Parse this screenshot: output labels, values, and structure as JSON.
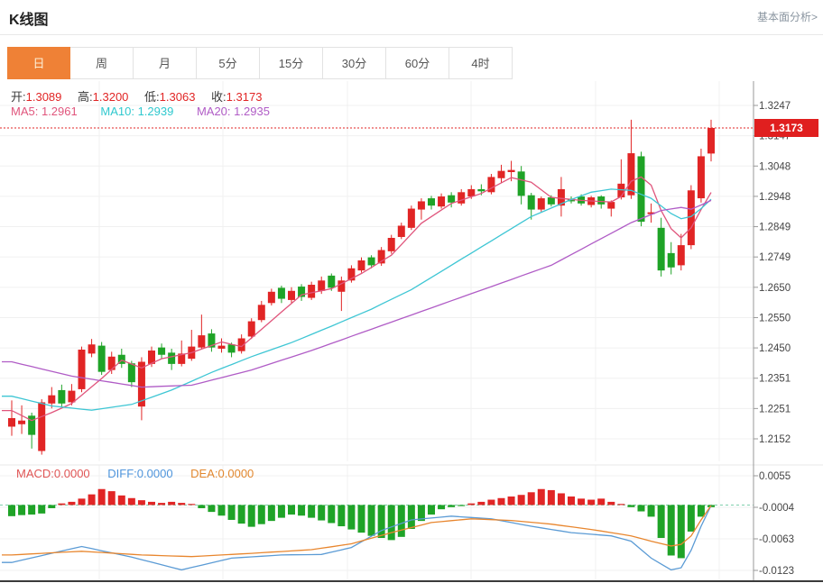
{
  "header": {
    "title": "K线图",
    "analysis_link": "基本面分析>"
  },
  "tabs": [
    {
      "id": "day",
      "label": "日",
      "active": true
    },
    {
      "id": "week",
      "label": "周",
      "active": false
    },
    {
      "id": "month",
      "label": "月",
      "active": false
    },
    {
      "id": "5min",
      "label": "5分",
      "active": false
    },
    {
      "id": "15min",
      "label": "15分",
      "active": false
    },
    {
      "id": "30min",
      "label": "30分",
      "active": false
    },
    {
      "id": "60min",
      "label": "60分",
      "active": false
    },
    {
      "id": "4hour",
      "label": "4时",
      "active": false
    }
  ],
  "ohlc_legend": {
    "open_label": "开:",
    "open_value": "1.3089",
    "high_label": "高:",
    "high_value": "1.3200",
    "low_label": "低:",
    "low_value": "1.3063",
    "close_label": "收:",
    "close_value": "1.3173"
  },
  "ma_legend": {
    "ma5_label": "MA5:",
    "ma5_value": "1.2961",
    "ma10_label": "MA10:",
    "ma10_value": "1.2939",
    "ma20_label": "MA20:",
    "ma20_value": "1.2935"
  },
  "macd_legend": {
    "macd_label": "MACD:",
    "macd_value": "0.0000",
    "diff_label": "DIFF:",
    "diff_value": "0.0000",
    "dea_label": "DEA:",
    "dea_value": "0.0000"
  },
  "price_tag": {
    "value": "1.3173"
  },
  "colors": {
    "up": "#e12525",
    "down": "#1fa327",
    "ma5": "#e0557c",
    "ma10": "#3ec6d4",
    "ma20": "#b05cc6",
    "diff": "#5b9bd5",
    "dea": "#e8862e",
    "tab_accent": "#ef8136",
    "price_line": "#e12525",
    "macd_zero_dash": "#7fcfad",
    "grid": "#f0f0f0",
    "axis": "#999999",
    "tick_text": "#444444"
  },
  "chart_data": {
    "type": "candlestick",
    "title": "K线图",
    "legend_position": "top-left",
    "grid": true,
    "main": {
      "y_ticks": [
        "1.3247",
        "1.3147",
        "1.3048",
        "1.2948",
        "1.2849",
        "1.2749",
        "1.2650",
        "1.2550",
        "1.2450",
        "1.2351",
        "1.2251",
        "1.2152"
      ],
      "y_range": [
        1.2152,
        1.3247
      ],
      "price_line_value": 1.3173,
      "candles_ohlc": [
        [
          1.2192,
          1.2278,
          1.2162,
          1.222
        ],
        [
          1.22,
          1.2262,
          1.2168,
          1.2212
        ],
        [
          1.2228,
          1.2238,
          1.212,
          1.2165
        ],
        [
          1.2112,
          1.2282,
          1.21,
          1.2272
        ],
        [
          1.2268,
          1.2322,
          1.2252,
          1.2295
        ],
        [
          1.2312,
          1.233,
          1.2256,
          1.2268
        ],
        [
          1.2272,
          1.2332,
          1.2262,
          1.231
        ],
        [
          1.2315,
          1.2455,
          1.2305,
          1.2445
        ],
        [
          1.2432,
          1.248,
          1.242,
          1.2462
        ],
        [
          1.2458,
          1.247,
          1.2362,
          1.2372
        ],
        [
          1.2378,
          1.2438,
          1.2365,
          1.2422
        ],
        [
          1.2428,
          1.2448,
          1.2385,
          1.2398
        ],
        [
          1.24,
          1.2408,
          1.2322,
          1.2338
        ],
        [
          1.2258,
          1.242,
          1.2213,
          1.2405
        ],
        [
          1.2398,
          1.2455,
          1.2388,
          1.2442
        ],
        [
          1.2452,
          1.2465,
          1.2415,
          1.2428
        ],
        [
          1.2435,
          1.2448,
          1.2378,
          1.2398
        ],
        [
          1.2398,
          1.2475,
          1.239,
          1.2432
        ],
        [
          1.2415,
          1.251,
          1.2408,
          1.2455
        ],
        [
          1.2452,
          1.256,
          1.2445,
          1.2492
        ],
        [
          1.2498,
          1.2512,
          1.2438,
          1.2452
        ],
        [
          1.2448,
          1.2482,
          1.2435,
          1.2458
        ],
        [
          1.2462,
          1.2468,
          1.242,
          1.2435
        ],
        [
          1.244,
          1.2495,
          1.2432,
          1.2482
        ],
        [
          1.2488,
          1.2548,
          1.248,
          1.2538
        ],
        [
          1.2542,
          1.2605,
          1.2535,
          1.2592
        ],
        [
          1.2598,
          1.2645,
          1.259,
          1.2635
        ],
        [
          1.2648,
          1.2655,
          1.2598,
          1.2612
        ],
        [
          1.2608,
          1.265,
          1.2595,
          1.2638
        ],
        [
          1.2652,
          1.266,
          1.2605,
          1.2618
        ],
        [
          1.2615,
          1.2668,
          1.2608,
          1.2658
        ],
        [
          1.2638,
          1.2685,
          1.2628,
          1.2672
        ],
        [
          1.2688,
          1.2695,
          1.2638,
          1.2648
        ],
        [
          1.2635,
          1.2685,
          1.2572,
          1.2672
        ],
        [
          1.2672,
          1.2722,
          1.2665,
          1.2712
        ],
        [
          1.2705,
          1.2748,
          1.2698,
          1.2738
        ],
        [
          1.2748,
          1.2755,
          1.2712,
          1.2722
        ],
        [
          1.2728,
          1.2782,
          1.272,
          1.2772
        ],
        [
          1.2768,
          1.2822,
          1.276,
          1.2812
        ],
        [
          1.2815,
          1.2862,
          1.2808,
          1.2852
        ],
        [
          1.2845,
          1.2918,
          1.2838,
          1.2908
        ],
        [
          1.2905,
          1.2942,
          1.2872,
          1.2932
        ],
        [
          1.2942,
          1.295,
          1.2905,
          1.2918
        ],
        [
          1.2915,
          1.2958,
          1.2908,
          1.2948
        ],
        [
          1.2952,
          1.2962,
          1.2912,
          1.2928
        ],
        [
          1.2925,
          1.2972,
          1.2918,
          1.2962
        ],
        [
          1.2948,
          1.2985,
          1.294,
          1.2972
        ],
        [
          1.2972,
          1.2988,
          1.2952,
          1.2965
        ],
        [
          1.2962,
          1.3022,
          1.2955,
          1.3012
        ],
        [
          1.3008,
          1.3052,
          1.2992,
          1.3032
        ],
        [
          1.3028,
          1.3065,
          1.2998,
          1.3035
        ],
        [
          1.303,
          1.3048,
          1.2922,
          1.295
        ],
        [
          1.2952,
          1.296,
          1.2872,
          1.2905
        ],
        [
          1.2905,
          1.2948,
          1.2898,
          1.2942
        ],
        [
          1.2945,
          1.2952,
          1.2915,
          1.2922
        ],
        [
          1.2918,
          1.3012,
          1.2882,
          1.2972
        ],
        [
          1.294,
          1.2948,
          1.2925,
          1.2932
        ],
        [
          1.2948,
          1.2955,
          1.2918,
          1.2925
        ],
        [
          1.292,
          1.295,
          1.2912,
          1.2945
        ],
        [
          1.2948,
          1.2952,
          1.2908,
          1.2922
        ],
        [
          1.2908,
          1.2935,
          1.2882,
          1.293
        ],
        [
          1.2945,
          1.307,
          1.2938,
          1.299
        ],
        [
          1.2952,
          1.32,
          1.294,
          1.309
        ],
        [
          1.308,
          1.3095,
          1.285,
          1.2865
        ],
        [
          1.289,
          1.2925,
          1.2862,
          1.2896
        ],
        [
          1.2845,
          1.2878,
          1.2685,
          1.2705
        ],
        [
          1.2762,
          1.2798,
          1.2692,
          1.2715
        ],
        [
          1.2722,
          1.2825,
          1.2705,
          1.2788
        ],
        [
          1.2788,
          1.2985,
          1.2775,
          1.2968
        ],
        [
          1.2942,
          1.3105,
          1.2928,
          1.308
        ],
        [
          1.3089,
          1.32,
          1.3063,
          1.3173
        ]
      ],
      "ma5_anchors": [
        [
          0,
          1.2245
        ],
        [
          2,
          1.2212
        ],
        [
          4,
          1.2238
        ],
        [
          6,
          1.2268
        ],
        [
          9,
          1.235
        ],
        [
          11,
          1.241
        ],
        [
          13,
          1.2385
        ],
        [
          15,
          1.2415
        ],
        [
          18,
          1.2435
        ],
        [
          21,
          1.247
        ],
        [
          23,
          1.2455
        ],
        [
          26,
          1.254
        ],
        [
          29,
          1.2625
        ],
        [
          32,
          1.2645
        ],
        [
          35,
          1.2695
        ],
        [
          38,
          1.2755
        ],
        [
          41,
          1.286
        ],
        [
          44,
          1.2925
        ],
        [
          47,
          1.2958
        ],
        [
          50,
          1.301
        ],
        [
          52,
          1.2995
        ],
        [
          54,
          1.2945
        ],
        [
          57,
          1.2935
        ],
        [
          60,
          1.293
        ],
        [
          61,
          1.2948
        ],
        [
          62,
          1.2998
        ],
        [
          63,
          1.3012
        ],
        [
          64,
          1.2985
        ],
        [
          65,
          1.2902
        ],
        [
          66,
          1.2842
        ],
        [
          67,
          1.2812
        ],
        [
          68,
          1.2845
        ],
        [
          69,
          1.2905
        ],
        [
          70,
          1.2961
        ]
      ],
      "ma10_anchors": [
        [
          0,
          1.2292
        ],
        [
          4,
          1.226
        ],
        [
          8,
          1.2246
        ],
        [
          12,
          1.2265
        ],
        [
          16,
          1.2312
        ],
        [
          20,
          1.237
        ],
        [
          24,
          1.2422
        ],
        [
          28,
          1.2468
        ],
        [
          32,
          1.2522
        ],
        [
          36,
          1.2578
        ],
        [
          40,
          1.2642
        ],
        [
          44,
          1.2722
        ],
        [
          48,
          1.2802
        ],
        [
          52,
          1.2882
        ],
        [
          56,
          1.2938
        ],
        [
          58,
          1.2962
        ],
        [
          60,
          1.2972
        ],
        [
          62,
          1.2968
        ],
        [
          64,
          1.2942
        ],
        [
          66,
          1.2892
        ],
        [
          67,
          1.2875
        ],
        [
          68,
          1.2882
        ],
        [
          69,
          1.2908
        ],
        [
          70,
          1.2939
        ]
      ],
      "ma20_anchors": [
        [
          0,
          1.2405
        ],
        [
          6,
          1.2358
        ],
        [
          13,
          1.2322
        ],
        [
          18,
          1.2328
        ],
        [
          24,
          1.2378
        ],
        [
          30,
          1.2442
        ],
        [
          36,
          1.2512
        ],
        [
          42,
          1.2582
        ],
        [
          48,
          1.2652
        ],
        [
          54,
          1.2722
        ],
        [
          58,
          1.2792
        ],
        [
          62,
          1.2862
        ],
        [
          65,
          1.2902
        ],
        [
          67,
          1.2912
        ],
        [
          68,
          1.2906
        ],
        [
          69,
          1.292
        ],
        [
          70,
          1.2935
        ]
      ]
    },
    "macd": {
      "y_ticks": [
        "0.0055",
        "-0.0004",
        "-0.0063",
        "-0.0123"
      ],
      "y_range": [
        -0.0123,
        0.0055
      ],
      "histogram": [
        -0.0021,
        -0.0019,
        -0.0018,
        -0.0016,
        -0.0006,
        0.0003,
        0.0006,
        0.0012,
        0.002,
        0.003,
        0.0026,
        0.0018,
        0.0013,
        0.0009,
        0.0006,
        0.0004,
        0.0006,
        0.0004,
        0.0002,
        -0.0006,
        -0.0013,
        -0.002,
        -0.0028,
        -0.0035,
        -0.0041,
        -0.0036,
        -0.003,
        -0.0024,
        -0.0018,
        -0.002,
        -0.0024,
        -0.0029,
        -0.0034,
        -0.004,
        -0.0046,
        -0.0052,
        -0.0058,
        -0.0062,
        -0.0066,
        -0.006,
        -0.0045,
        -0.003,
        -0.0018,
        -0.0008,
        -0.0004,
        -0.0002,
        0.0003,
        0.0006,
        0.001,
        0.0013,
        0.0016,
        0.0019,
        0.0024,
        0.003,
        0.0028,
        0.0022,
        0.0016,
        0.0012,
        0.001,
        0.0012,
        0.0006,
        0.0002,
        -0.0004,
        -0.0012,
        -0.0022,
        -0.0062,
        -0.0095,
        -0.01,
        -0.005,
        -0.0022,
        -0.0004
      ],
      "diff_anchors": [
        [
          0,
          -0.0108
        ],
        [
          7,
          -0.0078
        ],
        [
          12,
          -0.0098
        ],
        [
          17,
          -0.0122
        ],
        [
          22,
          -0.01
        ],
        [
          27,
          -0.0094
        ],
        [
          31,
          -0.0093
        ],
        [
          34,
          -0.008
        ],
        [
          37,
          -0.0048
        ],
        [
          40,
          -0.0028
        ],
        [
          44,
          -0.0021
        ],
        [
          48,
          -0.0026
        ],
        [
          52,
          -0.004
        ],
        [
          56,
          -0.0052
        ],
        [
          60,
          -0.0058
        ],
        [
          62,
          -0.0068
        ],
        [
          64,
          -0.01
        ],
        [
          66,
          -0.0122
        ],
        [
          67,
          -0.0118
        ],
        [
          68,
          -0.0085
        ],
        [
          69,
          -0.004
        ],
        [
          70,
          -0.0001
        ]
      ],
      "dea_anchors": [
        [
          0,
          -0.0094
        ],
        [
          7,
          -0.0087
        ],
        [
          13,
          -0.0094
        ],
        [
          18,
          -0.0097
        ],
        [
          24,
          -0.0091
        ],
        [
          30,
          -0.0084
        ],
        [
          34,
          -0.0073
        ],
        [
          38,
          -0.0052
        ],
        [
          42,
          -0.0033
        ],
        [
          46,
          -0.0026
        ],
        [
          50,
          -0.0029
        ],
        [
          54,
          -0.0036
        ],
        [
          58,
          -0.0046
        ],
        [
          62,
          -0.0058
        ],
        [
          64,
          -0.0068
        ],
        [
          66,
          -0.0077
        ],
        [
          67,
          -0.0074
        ],
        [
          68,
          -0.0058
        ],
        [
          69,
          -0.0028
        ],
        [
          70,
          -0.0001
        ]
      ]
    }
  }
}
